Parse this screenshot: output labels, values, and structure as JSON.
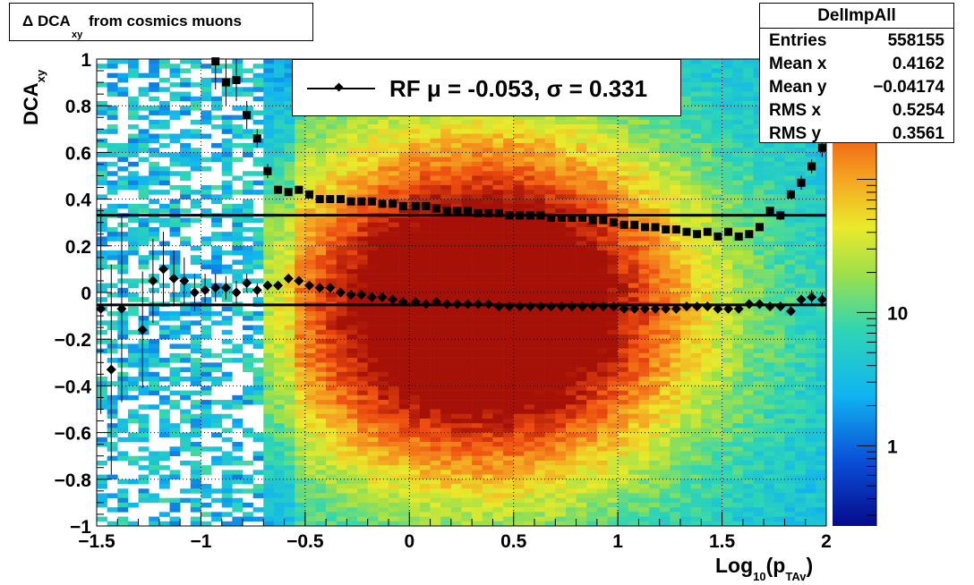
{
  "title": {
    "prefix": "Δ DCA",
    "sub": "xy",
    "tail": "from cosmics muons"
  },
  "stats": {
    "name": "DelImpAll",
    "rows": [
      {
        "key": "Entries",
        "value": "558155"
      },
      {
        "key": "Mean x",
        "value": "0.4162"
      },
      {
        "key": "Mean y",
        "value": "−0.04174"
      },
      {
        "key": "RMS x",
        "value": "0.5254"
      },
      {
        "key": "RMS y",
        "value": "0.3561"
      }
    ]
  },
  "legend": {
    "text": "RF μ = -0.053, σ =   0.331"
  },
  "axes": {
    "ylabel_main": "DCA",
    "ylabel_sub": "xy",
    "xlabel_main": "Log",
    "xlabel_sub1": "10",
    "xlabel_mid": "(p",
    "xlabel_sub2": "TAv",
    "xlabel_end": ")"
  },
  "colors": {
    "line": "#000000",
    "grid": "#000000"
  },
  "chart_data": {
    "type": "heatmap",
    "xlabel": "Log10(pTAv)",
    "ylabel": "DCAxy",
    "xlim": [
      -1.5,
      2.0
    ],
    "ylim": [
      -1.0,
      1.0
    ],
    "x_ticks": [
      "−1.5",
      "−1",
      "−0.5",
      "0",
      "0.5",
      "1",
      "1.5",
      "2"
    ],
    "y_ticks": [
      "−1",
      "−0.8",
      "−0.6",
      "−0.4",
      "−0.2",
      "0",
      "0.2",
      "0.4",
      "0.6",
      "0.8",
      "1"
    ],
    "z_ticks": [
      "1",
      "10"
    ],
    "z_scale": "log",
    "grid": true,
    "horizontal_lines": [
      0.331,
      -0.053
    ],
    "sigma_points": {
      "x": [
        -0.93,
        -0.88,
        -0.83,
        -0.78,
        -0.73,
        -0.68,
        -0.63,
        -0.58,
        -0.53,
        -0.48,
        -0.43,
        -0.38,
        -0.33,
        -0.28,
        -0.23,
        -0.18,
        -0.13,
        -0.08,
        -0.03,
        0.03,
        0.08,
        0.13,
        0.18,
        0.23,
        0.28,
        0.33,
        0.38,
        0.43,
        0.48,
        0.53,
        0.58,
        0.63,
        0.68,
        0.73,
        0.78,
        0.83,
        0.88,
        0.93,
        0.98,
        1.03,
        1.08,
        1.13,
        1.18,
        1.23,
        1.28,
        1.33,
        1.38,
        1.43,
        1.48,
        1.53,
        1.58,
        1.63,
        1.68,
        1.73,
        1.78,
        1.83,
        1.88,
        1.93,
        1.98
      ],
      "y": [
        0.99,
        0.9,
        0.91,
        0.76,
        0.66,
        0.52,
        0.44,
        0.43,
        0.44,
        0.42,
        0.4,
        0.4,
        0.4,
        0.39,
        0.39,
        0.39,
        0.38,
        0.38,
        0.37,
        0.37,
        0.37,
        0.36,
        0.35,
        0.35,
        0.35,
        0.34,
        0.34,
        0.34,
        0.33,
        0.33,
        0.33,
        0.33,
        0.32,
        0.32,
        0.32,
        0.32,
        0.31,
        0.31,
        0.3,
        0.29,
        0.29,
        0.28,
        0.28,
        0.27,
        0.27,
        0.26,
        0.25,
        0.26,
        0.24,
        0.26,
        0.24,
        0.25,
        0.28,
        0.35,
        0.33,
        0.42,
        0.47,
        0.54,
        0.62
      ],
      "yerr": [
        0.12,
        0.1,
        0.09,
        0.06,
        0.04,
        0.03,
        0.01,
        0.01,
        0.01,
        0.01,
        0.01,
        0.01,
        0.01,
        0.01,
        0.01,
        0.01,
        0.01,
        0.01,
        0.01,
        0.01,
        0.01,
        0.01,
        0.01,
        0.01,
        0.01,
        0.01,
        0.01,
        0.01,
        0.01,
        0.01,
        0.01,
        0.01,
        0.01,
        0.01,
        0.01,
        0.01,
        0.01,
        0.01,
        0.01,
        0.01,
        0.01,
        0.01,
        0.01,
        0.01,
        0.01,
        0.01,
        0.01,
        0.01,
        0.01,
        0.01,
        0.01,
        0.01,
        0.01,
        0.01,
        0.02,
        0.02,
        0.03,
        0.03,
        0.04
      ]
    },
    "mean_points": {
      "x": [
        -1.48,
        -1.43,
        -1.38,
        -1.28,
        -1.23,
        -1.18,
        -1.13,
        -1.08,
        -1.03,
        -0.98,
        -0.93,
        -0.88,
        -0.83,
        -0.78,
        -0.73,
        -0.68,
        -0.63,
        -0.58,
        -0.53,
        -0.48,
        -0.43,
        -0.38,
        -0.33,
        -0.28,
        -0.23,
        -0.18,
        -0.13,
        -0.08,
        -0.03,
        0.03,
        0.08,
        0.13,
        0.18,
        0.23,
        0.28,
        0.33,
        0.38,
        0.43,
        0.48,
        0.53,
        0.58,
        0.63,
        0.68,
        0.73,
        0.78,
        0.83,
        0.88,
        0.93,
        0.98,
        1.03,
        1.08,
        1.13,
        1.18,
        1.23,
        1.28,
        1.33,
        1.38,
        1.43,
        1.48,
        1.53,
        1.58,
        1.63,
        1.68,
        1.73,
        1.78,
        1.83,
        1.88,
        1.93,
        1.98
      ],
      "y": [
        -0.07,
        -0.33,
        -0.07,
        -0.16,
        0.05,
        0.1,
        0.06,
        0.05,
        0.0,
        0.01,
        0.02,
        0.02,
        0.0,
        0.04,
        0.01,
        0.03,
        0.03,
        0.06,
        0.05,
        0.03,
        0.02,
        0.02,
        0.0,
        -0.01,
        -0.01,
        -0.02,
        -0.02,
        -0.03,
        -0.04,
        -0.04,
        -0.05,
        -0.04,
        -0.05,
        -0.05,
        -0.05,
        -0.05,
        -0.05,
        -0.06,
        -0.06,
        -0.06,
        -0.06,
        -0.06,
        -0.06,
        -0.06,
        -0.06,
        -0.06,
        -0.06,
        -0.06,
        -0.06,
        -0.07,
        -0.07,
        -0.07,
        -0.07,
        -0.07,
        -0.07,
        -0.06,
        -0.06,
        -0.06,
        -0.07,
        -0.07,
        -0.07,
        -0.05,
        -0.05,
        -0.06,
        -0.06,
        -0.08,
        -0.03,
        -0.02,
        -0.03
      ],
      "yerr": [
        0.45,
        0.45,
        0.4,
        0.25,
        0.18,
        0.16,
        0.12,
        0.1,
        0.08,
        0.07,
        0.06,
        0.05,
        0.05,
        0.04,
        0.03,
        0.02,
        0.01,
        0.01,
        0.01,
        0.01,
        0.01,
        0.01,
        0.01,
        0.01,
        0.01,
        0.01,
        0.01,
        0.01,
        0.01,
        0.01,
        0.01,
        0.01,
        0.01,
        0.01,
        0.01,
        0.01,
        0.01,
        0.01,
        0.01,
        0.01,
        0.01,
        0.01,
        0.01,
        0.01,
        0.01,
        0.01,
        0.01,
        0.01,
        0.01,
        0.01,
        0.01,
        0.01,
        0.01,
        0.01,
        0.01,
        0.01,
        0.01,
        0.01,
        0.01,
        0.01,
        0.01,
        0.01,
        0.01,
        0.01,
        0.01,
        0.02,
        0.02,
        0.03,
        0.03
      ]
    }
  }
}
